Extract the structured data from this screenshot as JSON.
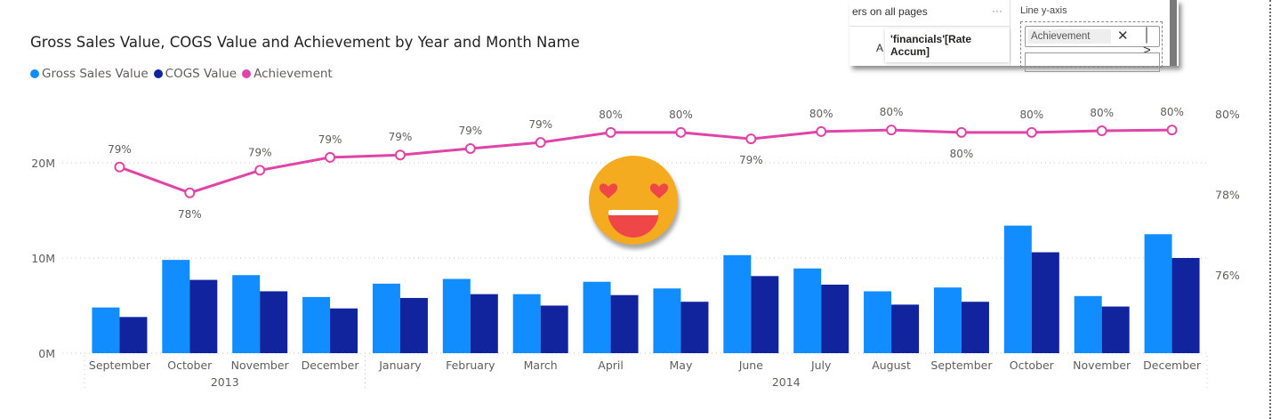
{
  "chart_data": {
    "type": "bar+line",
    "title": "Gross Sales Value, COGS Value and Achievement by Year and Month Name",
    "legend": [
      "Gross Sales Value",
      "COGS Value",
      "Achievement"
    ],
    "legend_position": "top-left",
    "categories": [
      "September",
      "October",
      "November",
      "December",
      "January",
      "February",
      "March",
      "April",
      "May",
      "June",
      "July",
      "August",
      "September",
      "October",
      "November",
      "December"
    ],
    "years": [
      {
        "label": "2013",
        "span": 4
      },
      {
        "label": "2014",
        "span": 12
      }
    ],
    "series": [
      {
        "name": "Gross Sales Value",
        "type": "bar",
        "axis": "left",
        "color": "#118dff",
        "values": [
          4.8,
          9.8,
          8.2,
          5.9,
          7.3,
          7.8,
          6.2,
          7.5,
          6.8,
          10.3,
          8.9,
          6.5,
          6.9,
          13.4,
          6.0,
          12.5
        ]
      },
      {
        "name": "COGS Value",
        "type": "bar",
        "axis": "left",
        "color": "#12239e",
        "values": [
          3.8,
          7.7,
          6.5,
          4.7,
          5.8,
          6.2,
          5.0,
          6.1,
          5.4,
          8.1,
          7.2,
          5.1,
          5.4,
          10.6,
          4.9,
          10.0
        ]
      },
      {
        "name": "Achievement",
        "type": "line",
        "axis": "right",
        "color": "#e044a7",
        "values": [
          78.68,
          78.04,
          78.6,
          78.92,
          78.98,
          79.14,
          79.29,
          79.54,
          79.54,
          79.38,
          79.56,
          79.6,
          79.54,
          79.54,
          79.58,
          79.6
        ],
        "labels": [
          "79%",
          "78%",
          "79%",
          "79%",
          "79%",
          "79%",
          "79%",
          "80%",
          "80%",
          "79%",
          "80%",
          "80%",
          "80%",
          "80%",
          "80%",
          "80%"
        ],
        "label_below": [
          false,
          true,
          false,
          false,
          false,
          false,
          false,
          false,
          false,
          true,
          false,
          false,
          true,
          false,
          false,
          false
        ]
      }
    ],
    "y_left": {
      "ticks": [
        0,
        10,
        20
      ],
      "tick_labels": [
        "0M",
        "10M",
        "20M"
      ],
      "unit": "M"
    },
    "y_right": {
      "ticks": [
        76,
        78,
        80
      ],
      "tick_labels": [
        "76%",
        "78%",
        "80%"
      ]
    },
    "grid": true
  },
  "overlay": {
    "pages_text": "ers on all pages",
    "more": "···",
    "partial_item": "A",
    "tooltip": "'financials'[Rate Accum]",
    "axis_label": "Line y-axis",
    "field": "Achievement",
    "remove": "✕",
    "expand": "│ >"
  }
}
